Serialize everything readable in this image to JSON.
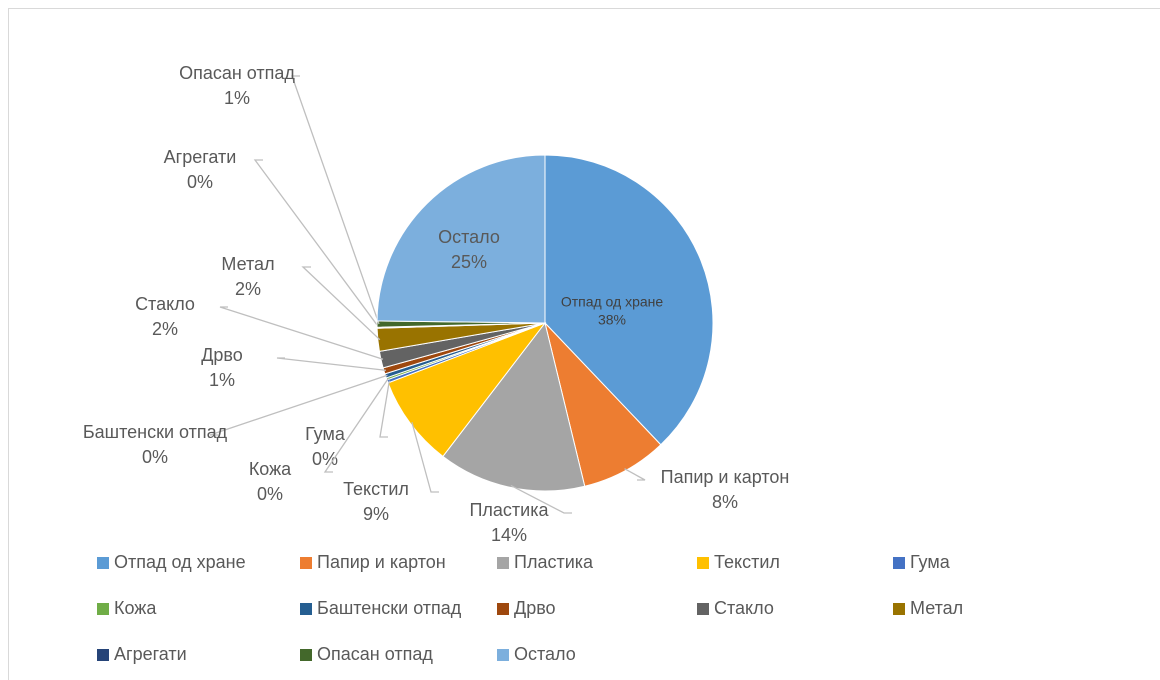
{
  "chart_data": {
    "type": "pie",
    "categories": [
      "Отпад од хране",
      "Папир и картон",
      "Пластика",
      "Текстил",
      "Гума",
      "Кожа",
      "Баштенски отпад",
      "Дрво",
      "Стакло",
      "Метал",
      "Агрегати",
      "Опасан отпад",
      "Остало"
    ],
    "values": [
      37.9,
      8.3,
      14.2,
      8.8,
      0.3,
      0.2,
      0.4,
      0.6,
      1.6,
      2.2,
      0.1,
      0.6,
      24.8
    ],
    "value_labels": [
      "38%",
      "8%",
      "14%",
      "9%",
      "0%",
      "0%",
      "0%",
      "1%",
      "2%",
      "2%",
      "0%",
      "1%",
      "25%"
    ],
    "colors": [
      "#5b9bd5",
      "#ed7d31",
      "#a5a5a5",
      "#ffc000",
      "#4472c4",
      "#70ad47",
      "#255e91",
      "#9e480e",
      "#636363",
      "#997300",
      "#264478",
      "#43682b",
      "#7cafdd"
    ],
    "legend": "bottom"
  }
}
